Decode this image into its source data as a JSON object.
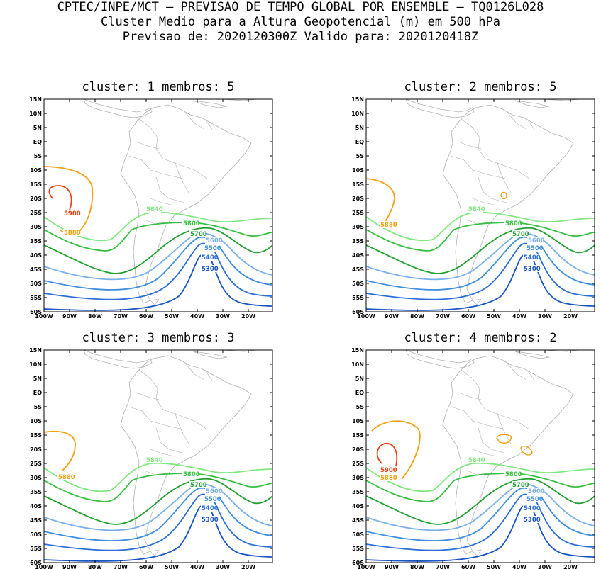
{
  "header": {
    "line1": "CPTEC/INPE/MCT — PREVISAO DE TEMPO GLOBAL POR ENSEMBLE — TQ0126L028",
    "line2": "Cluster Medio para a Altura Geopotencial (m) em 500 hPa",
    "line3": "Previsao de: 2020120300Z   Valido para: 2020120418Z"
  },
  "axis": {
    "lat_labels": [
      "15N",
      "10N",
      "5N",
      "EQ",
      "5S",
      "10S",
      "15S",
      "20S",
      "25S",
      "30S",
      "35S",
      "40S",
      "45S",
      "50S",
      "55S",
      "60S"
    ],
    "lon_labels": [
      "100W",
      "90W",
      "80W",
      "70W",
      "60W",
      "50W",
      "40W",
      "30W",
      "20W"
    ]
  },
  "colors": {
    "c5300": "#1a55c4",
    "c5400": "#2a6fd8",
    "c5500": "#3f8fe0",
    "c5600": "#7ab0ea",
    "c5700": "#20a030",
    "c5800": "#35c040",
    "c5840": "#80e880",
    "c5880": "#f5a010",
    "c5900": "#e84010",
    "land": "#b0b0b0"
  },
  "panels": [
    {
      "title": "cluster: 1   membros: 5",
      "labels": {
        "c5300": "5300",
        "c5400": "5400",
        "c5500": "5500",
        "c5600": "5600",
        "c5700": "5700",
        "c5800": "5800",
        "c5840": "5840",
        "c5880": "5880",
        "c5900": "5900"
      }
    },
    {
      "title": "cluster: 2   membros: 5",
      "labels": {
        "c5300": "5300",
        "c5400": "5400",
        "c5500": "5500",
        "c5600": "5600",
        "c5700": "5700",
        "c5800": "5800",
        "c5840": "5840",
        "c5880": "5880"
      }
    },
    {
      "title": "cluster: 3   membros: 3",
      "labels": {
        "c5300": "5300",
        "c5400": "5400",
        "c5500": "5500",
        "c5600": "5600",
        "c5700": "5700",
        "c5800": "5800",
        "c5840": "5840",
        "c5880": "5880"
      }
    },
    {
      "title": "cluster: 4   membros: 2",
      "labels": {
        "c5300": "5300",
        "c5400": "5400",
        "c5500": "5500",
        "c5600": "5600",
        "c5700": "5700",
        "c5800": "5800",
        "c5840": "5840",
        "c5880": "5880",
        "c5900": "5900"
      }
    }
  ]
}
